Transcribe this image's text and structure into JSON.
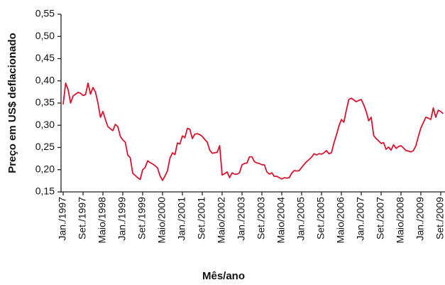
{
  "chart_data": {
    "type": "line",
    "x_label": "Mês/ano",
    "y_label": "Preço em US$ deflacionado",
    "color": "#d7132e",
    "categories": [
      "Jan./1997",
      null,
      null,
      null,
      null,
      null,
      null,
      null,
      "Set./1997",
      null,
      null,
      null,
      null,
      null,
      null,
      null,
      "Maio/1998",
      null,
      null,
      null,
      null,
      null,
      null,
      null,
      "Jan./1999",
      null,
      null,
      null,
      null,
      null,
      null,
      null,
      "Set./1999",
      null,
      null,
      null,
      null,
      null,
      null,
      null,
      "Maio/2000",
      null,
      null,
      null,
      null,
      null,
      null,
      null,
      "Jan./2001",
      null,
      null,
      null,
      null,
      null,
      null,
      null,
      "Set./2001",
      null,
      null,
      null,
      null,
      null,
      null,
      null,
      "Maio/2002",
      null,
      null,
      null,
      null,
      null,
      null,
      null,
      "Jan./2003",
      null,
      null,
      null,
      null,
      null,
      null,
      null,
      "Set./2003",
      null,
      null,
      null,
      null,
      null,
      null,
      null,
      "Maio/2004",
      null,
      null,
      null,
      null,
      null,
      null,
      null,
      "Jan./2005",
      null,
      null,
      null,
      null,
      null,
      null,
      null,
      "Set./2005",
      null,
      null,
      null,
      null,
      null,
      null,
      null,
      "Maio/2006",
      null,
      null,
      null,
      null,
      null,
      null,
      null,
      "Jan./2007",
      null,
      null,
      null,
      null,
      null,
      null,
      null,
      "Set./2007",
      null,
      null,
      null,
      null,
      null,
      null,
      null,
      "Maio/2008",
      null,
      null,
      null,
      null,
      null,
      null,
      null,
      "Jan./2009",
      null,
      null,
      null,
      null,
      null,
      null,
      null,
      "Set./2009",
      null
    ],
    "values": [
      0.347,
      0.395,
      0.38,
      0.35,
      0.366,
      0.37,
      0.374,
      0.372,
      0.367,
      0.369,
      0.395,
      0.37,
      0.385,
      0.375,
      0.35,
      0.318,
      0.331,
      0.313,
      0.297,
      0.292,
      0.288,
      0.302,
      0.297,
      0.275,
      0.267,
      0.262,
      0.233,
      0.227,
      0.192,
      0.187,
      0.182,
      0.178,
      0.2,
      0.205,
      0.22,
      0.216,
      0.213,
      0.209,
      0.204,
      0.186,
      0.176,
      0.186,
      0.198,
      0.226,
      0.238,
      0.234,
      0.26,
      0.258,
      0.276,
      0.272,
      0.293,
      0.291,
      0.27,
      0.28,
      0.281,
      0.279,
      0.275,
      0.268,
      0.262,
      0.244,
      0.237,
      0.238,
      0.239,
      0.254,
      0.188,
      0.191,
      0.195,
      0.182,
      0.193,
      0.19,
      0.19,
      0.193,
      0.211,
      0.214,
      0.215,
      0.229,
      0.229,
      0.218,
      0.215,
      0.214,
      0.211,
      0.211,
      0.195,
      0.19,
      0.193,
      0.185,
      0.185,
      0.182,
      0.179,
      0.182,
      0.181,
      0.182,
      0.192,
      0.198,
      0.197,
      0.198,
      0.205,
      0.212,
      0.218,
      0.223,
      0.228,
      0.236,
      0.233,
      0.236,
      0.235,
      0.238,
      0.243,
      0.236,
      0.238,
      0.26,
      0.278,
      0.298,
      0.313,
      0.307,
      0.334,
      0.358,
      0.361,
      0.357,
      0.353,
      0.356,
      0.358,
      0.346,
      0.331,
      0.31,
      0.318,
      0.277,
      0.27,
      0.265,
      0.259,
      0.261,
      0.246,
      0.251,
      0.244,
      0.256,
      0.248,
      0.252,
      0.254,
      0.249,
      0.243,
      0.242,
      0.24,
      0.243,
      0.254,
      0.275,
      0.294,
      0.306,
      0.318,
      0.316,
      0.313,
      0.339,
      0.318,
      0.334,
      0.331,
      0.326
    ],
    "ylim": [
      0.15,
      0.55
    ],
    "yticks": [
      {
        "value": 0.15,
        "label": "0,15"
      },
      {
        "value": 0.2,
        "label": "0,20"
      },
      {
        "value": 0.25,
        "label": "0,25"
      },
      {
        "value": 0.3,
        "label": "0,30"
      },
      {
        "value": 0.35,
        "label": "0,35"
      },
      {
        "value": 0.4,
        "label": "0,40"
      },
      {
        "value": 0.45,
        "label": "0,45"
      },
      {
        "value": 0.5,
        "label": "0,50"
      },
      {
        "value": 0.55,
        "label": "0,55"
      }
    ],
    "grid": false
  }
}
